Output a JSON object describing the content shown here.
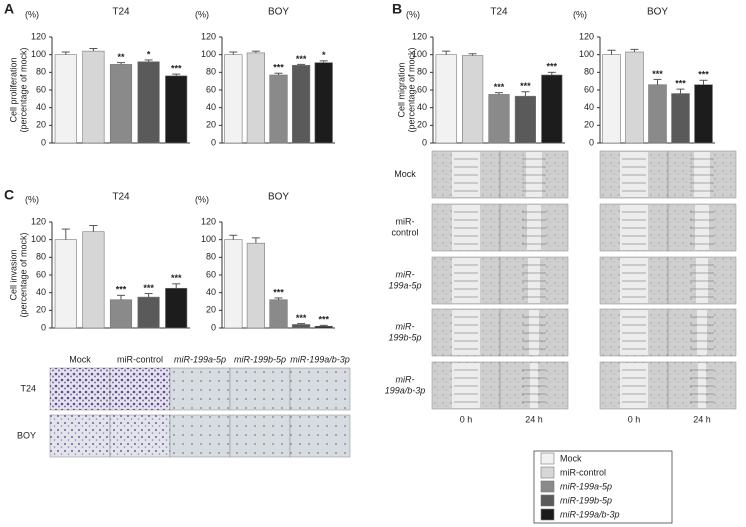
{
  "panel_labels": [
    "A",
    "B",
    "C"
  ],
  "legend": {
    "series": [
      {
        "name": "Mock",
        "color": "#f2f2f2"
      },
      {
        "name": "miR-control",
        "color": "#d6d6d6"
      },
      {
        "name": "miR-199a-5p",
        "color": "#8a8a8a"
      },
      {
        "name": "miR-199b-5p",
        "color": "#5a5a5a"
      },
      {
        "name": "miR-199a/b-3p",
        "color": "#1c1c1c"
      }
    ]
  },
  "chart_data": [
    {
      "type": "bar",
      "title": "T24",
      "unit_label": "(%)",
      "ylabel": [
        "Cell proliferation",
        "(percentage of mock)"
      ],
      "values": [
        100,
        104,
        89,
        92,
        76
      ],
      "errors": [
        3,
        3,
        2,
        2,
        2
      ],
      "significance": [
        null,
        null,
        "**",
        "*",
        "***"
      ],
      "ylim": [
        0,
        120
      ],
      "yticks": [
        0,
        20,
        40,
        60,
        80,
        100,
        120
      ]
    },
    {
      "type": "bar",
      "title": "BOY",
      "unit_label": "(%)",
      "values": [
        100,
        102,
        77,
        88,
        91
      ],
      "errors": [
        3,
        2,
        2,
        1,
        2
      ],
      "significance": [
        null,
        null,
        "***",
        "***",
        "*"
      ],
      "ylim": [
        0,
        120
      ],
      "yticks": [
        0,
        20,
        40,
        60,
        80,
        100,
        120
      ]
    },
    {
      "type": "bar",
      "title": "T24",
      "unit_label": "(%)",
      "ylabel": [
        "Cell migration",
        "(percentage of mock)"
      ],
      "values": [
        100,
        99,
        55,
        53,
        77
      ],
      "errors": [
        4,
        2,
        2,
        5,
        3
      ],
      "significance": [
        null,
        null,
        "***",
        "***",
        "***"
      ],
      "ylim": [
        0,
        120
      ],
      "yticks": [
        0,
        20,
        40,
        60,
        80,
        100,
        120
      ]
    },
    {
      "type": "bar",
      "title": "BOY",
      "unit_label": "(%)",
      "values": [
        100,
        103,
        66,
        56,
        66
      ],
      "errors": [
        5,
        3,
        6,
        5,
        5
      ],
      "significance": [
        null,
        null,
        "***",
        "***",
        "***"
      ],
      "ylim": [
        0,
        120
      ],
      "yticks": [
        0,
        20,
        40,
        60,
        80,
        100,
        120
      ]
    },
    {
      "type": "bar",
      "title": "T24",
      "unit_label": "(%)",
      "ylabel": [
        "Cell invasion",
        "(percentage of mock)"
      ],
      "values": [
        100,
        109,
        32,
        35,
        45
      ],
      "errors": [
        12,
        7,
        5,
        4,
        5
      ],
      "significance": [
        null,
        null,
        "***",
        "***",
        "***"
      ],
      "ylim": [
        0,
        120
      ],
      "yticks": [
        0,
        20,
        40,
        60,
        80,
        100,
        120
      ]
    },
    {
      "type": "bar",
      "title": "BOY",
      "unit_label": "(%)",
      "values": [
        100,
        96,
        32,
        4,
        2
      ],
      "errors": [
        5,
        6,
        2,
        1,
        1
      ],
      "significance": [
        null,
        null,
        "***",
        "***",
        "***"
      ],
      "ylim": [
        0,
        120
      ],
      "yticks": [
        0,
        20,
        40,
        60,
        80,
        100,
        120
      ]
    }
  ],
  "migration_images": {
    "row_labels": [
      [
        "Mock"
      ],
      [
        "miR-",
        "control"
      ],
      [
        "miR-",
        "199a-5p"
      ],
      [
        "miR-",
        "199b-5p"
      ],
      [
        "miR-",
        "199a/b-3p"
      ]
    ],
    "time_labels": [
      "0 h",
      "24 h"
    ]
  },
  "invasion_images": {
    "column_labels": [
      "Mock",
      "miR-control",
      "miR-199a-5p",
      "miR-199b-5p",
      "miR-199a/b-3p"
    ],
    "row_labels": [
      "T24",
      "BOY"
    ]
  }
}
